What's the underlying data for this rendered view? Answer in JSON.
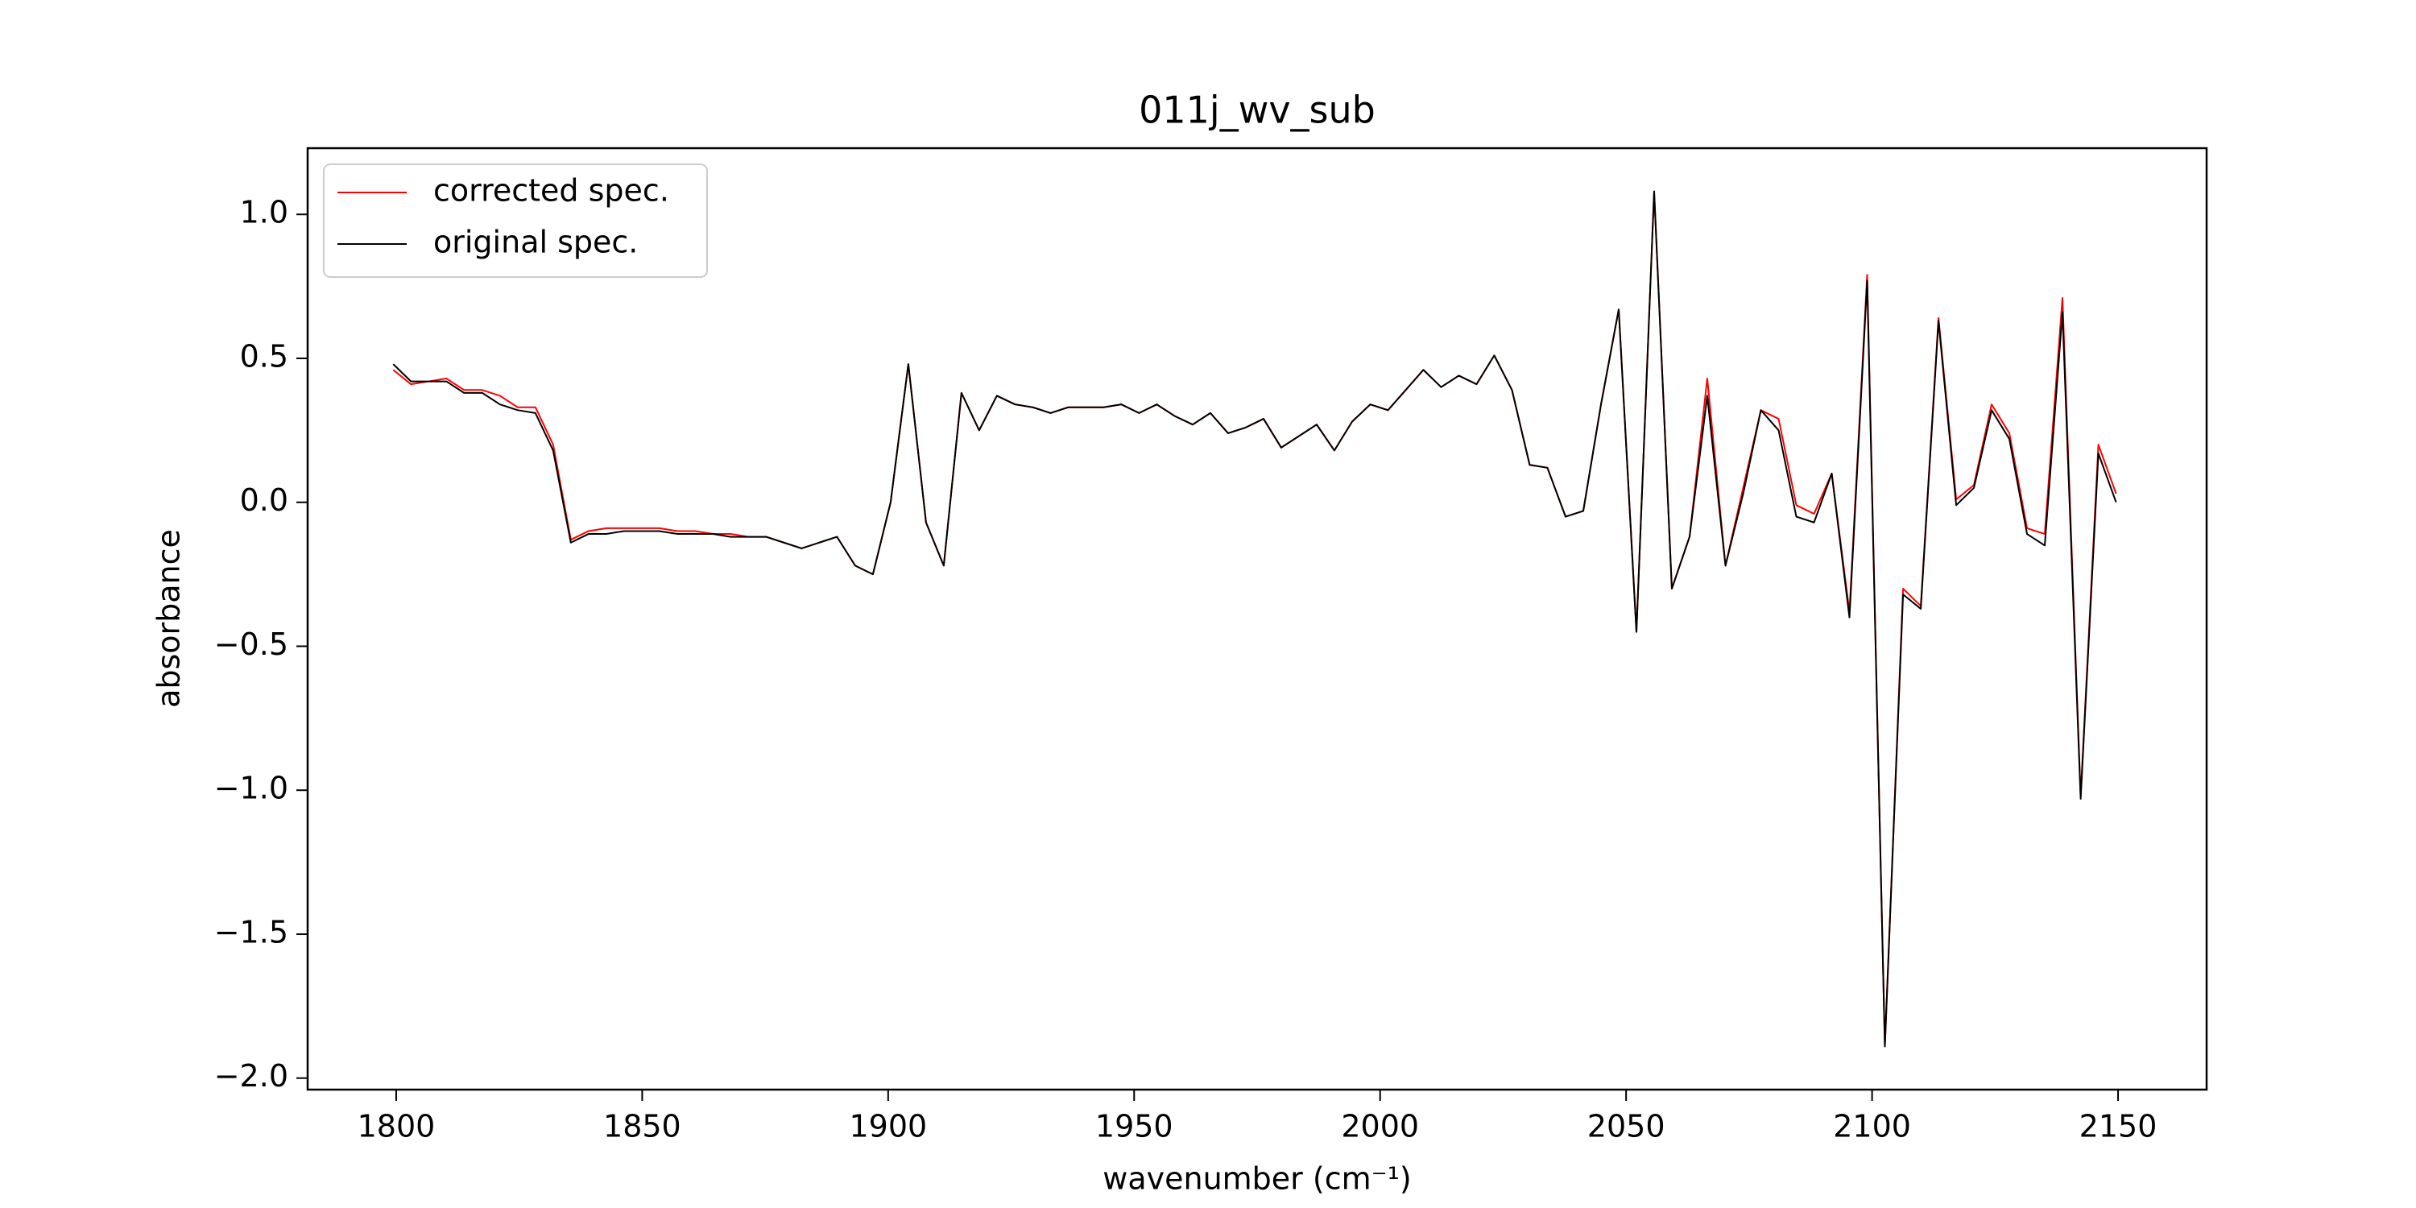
{
  "chart_data": {
    "type": "line",
    "title": "011j_wv_sub",
    "xlabel": "wavenumber (cm⁻¹)",
    "ylabel": "absorbance",
    "xlim": [
      1782,
      2168
    ],
    "ylim": [
      -2.04,
      1.23
    ],
    "xticks": [
      1800,
      1850,
      1900,
      1950,
      2000,
      2050,
      2100,
      2150
    ],
    "yticks": [
      {
        "value": -2,
        "label": "−2.0"
      },
      {
        "value": -1.5,
        "label": "−1.5"
      },
      {
        "value": -1,
        "label": "−1.0"
      },
      {
        "value": -0.5,
        "label": "−0.5"
      },
      {
        "value": 0,
        "label": "0.0"
      },
      0.5,
      {
        "value": 1,
        "label": "1.0"
      }
    ],
    "legend": "upper left",
    "x": [
      1799.4,
      1803.0,
      1806.6,
      1810.2,
      1813.8,
      1817.5,
      1821.1,
      1824.7,
      1828.3,
      1831.9,
      1835.5,
      1839.1,
      1842.7,
      1846.3,
      1849.9,
      1853.5,
      1857.2,
      1860.8,
      1864.4,
      1868.0,
      1871.6,
      1875.2,
      1878.8,
      1882.4,
      1886.0,
      1889.6,
      1893.3,
      1896.9,
      1900.5,
      1904.1,
      1907.7,
      1911.3,
      1914.9,
      1918.5,
      1922.1,
      1925.8,
      1929.4,
      1933.0,
      1936.6,
      1940.2,
      1943.8,
      1947.4,
      1951.0,
      1954.6,
      1958.2,
      1961.9,
      1965.5,
      1969.1,
      1972.7,
      1976.3,
      1979.9,
      1983.5,
      1987.1,
      1990.7,
      1994.3,
      1998.0,
      2001.6,
      2005.2,
      2008.8,
      2012.4,
      2016.0,
      2019.6,
      2023.2,
      2026.8,
      2030.4,
      2034.0,
      2037.7,
      2041.3,
      2044.9,
      2048.5,
      2052.1,
      2055.7,
      2059.3,
      2062.9,
      2066.5,
      2070.2,
      2073.8,
      2077.4,
      2081.0,
      2084.6,
      2088.2,
      2091.8,
      2095.4,
      2099.0,
      2102.6,
      2106.3,
      2109.9,
      2113.5,
      2117.1,
      2120.7,
      2124.3,
      2127.9,
      2131.5,
      2135.1,
      2138.7,
      2142.4,
      2146.0,
      2149.6
    ],
    "series": [
      {
        "name": "corrected spec.",
        "color": "#ff0000",
        "values": [
          0.46,
          0.41,
          0.42,
          0.43,
          0.39,
          0.39,
          0.37,
          0.33,
          0.33,
          0.2,
          -0.13,
          -0.1,
          -0.09,
          -0.09,
          -0.09,
          -0.09,
          -0.1,
          -0.1,
          -0.11,
          -0.11,
          -0.12,
          -0.12,
          -0.14,
          -0.16,
          -0.14,
          -0.12,
          -0.22,
          -0.25,
          0.0,
          0.48,
          -0.07,
          -0.22,
          0.38,
          0.25,
          0.37,
          0.34,
          0.33,
          0.31,
          0.33,
          0.33,
          0.33,
          0.34,
          0.31,
          0.34,
          0.3,
          0.27,
          0.31,
          0.24,
          0.26,
          0.29,
          0.19,
          0.23,
          0.27,
          0.18,
          0.28,
          0.34,
          0.32,
          0.39,
          0.46,
          0.4,
          0.44,
          0.41,
          0.51,
          0.39,
          0.13,
          0.12,
          -0.05,
          -0.03,
          0.34,
          0.67,
          -0.45,
          1.08,
          -0.3,
          -0.12,
          0.43,
          -0.22,
          0.05,
          0.32,
          0.29,
          -0.01,
          -0.04,
          0.1,
          -0.38,
          0.79,
          -1.89,
          -0.3,
          -0.36,
          0.64,
          0.01,
          0.06,
          0.34,
          0.24,
          -0.09,
          -0.11,
          0.71,
          -1.02,
          0.2,
          0.03
        ]
      },
      {
        "name": "original spec.",
        "color": "#000000",
        "values": [
          0.48,
          0.42,
          0.42,
          0.42,
          0.38,
          0.38,
          0.34,
          0.32,
          0.31,
          0.18,
          -0.14,
          -0.11,
          -0.11,
          -0.1,
          -0.1,
          -0.1,
          -0.11,
          -0.11,
          -0.11,
          -0.12,
          -0.12,
          -0.12,
          -0.14,
          -0.16,
          -0.14,
          -0.12,
          -0.22,
          -0.25,
          0.0,
          0.48,
          -0.07,
          -0.22,
          0.38,
          0.25,
          0.37,
          0.34,
          0.33,
          0.31,
          0.33,
          0.33,
          0.33,
          0.34,
          0.31,
          0.34,
          0.3,
          0.27,
          0.31,
          0.24,
          0.26,
          0.29,
          0.19,
          0.23,
          0.27,
          0.18,
          0.28,
          0.34,
          0.32,
          0.39,
          0.46,
          0.4,
          0.44,
          0.41,
          0.51,
          0.39,
          0.13,
          0.12,
          -0.05,
          -0.03,
          0.34,
          0.67,
          -0.45,
          1.08,
          -0.3,
          -0.12,
          0.37,
          -0.22,
          0.03,
          0.32,
          0.25,
          -0.05,
          -0.07,
          0.1,
          -0.4,
          0.77,
          -1.89,
          -0.32,
          -0.37,
          0.63,
          -0.01,
          0.05,
          0.32,
          0.22,
          -0.11,
          -0.15,
          0.66,
          -1.03,
          0.17,
          0.0
        ]
      }
    ]
  }
}
